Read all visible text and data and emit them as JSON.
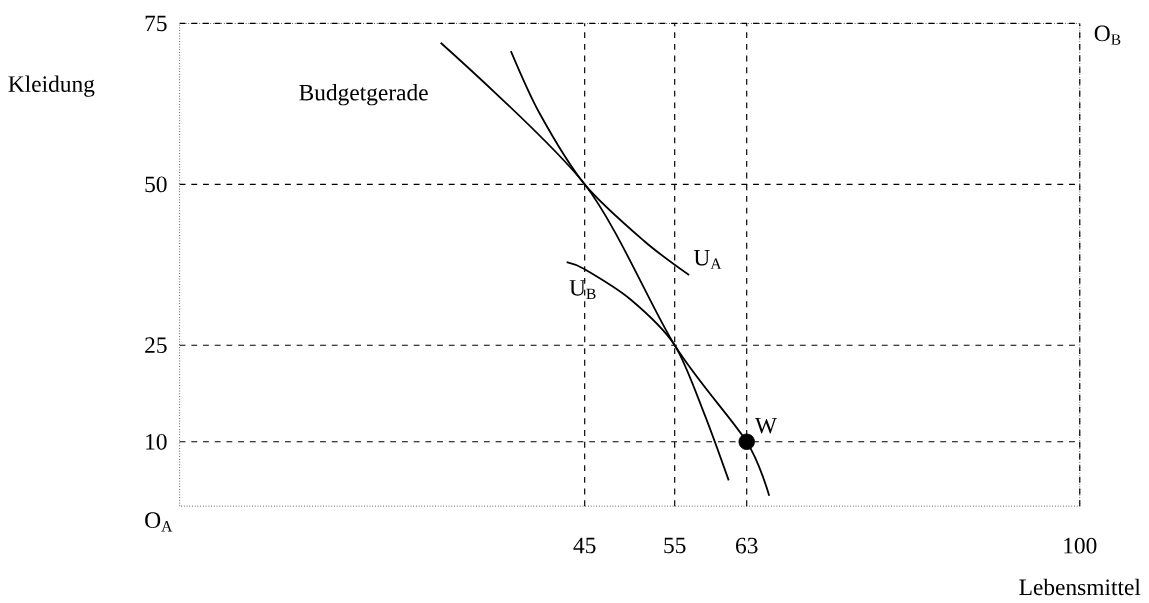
{
  "chart_data": {
    "type": "line",
    "xlabel": "Lebensmittel",
    "ylabel": "Kleidung",
    "xlim": [
      0,
      100
    ],
    "ylim": [
      0,
      75
    ],
    "xticks": [
      45,
      55,
      63,
      100
    ],
    "yticks": [
      10,
      25,
      50,
      75
    ],
    "grid": true,
    "series": [
      {
        "color": "#000000",
        "x": [
          29,
          45,
          55,
          63,
          65.5
        ],
        "values": [
          72,
          50,
          25,
          10,
          1.6
        ]
      },
      {
        "color": "#000000",
        "x": [
          36.8,
          40,
          45,
          51.6,
          56.6
        ],
        "values": [
          70.7,
          61,
          50,
          41.2,
          35.9
        ]
      },
      {
        "color": "#000000",
        "x": [
          43,
          45,
          50.1,
          55,
          58.3,
          61
        ],
        "values": [
          37.9,
          36.8,
          32.1,
          25,
          14.3,
          4
        ]
      },
      {
        "type": "scatter",
        "color": "#000000",
        "x": [
          63
        ],
        "values": [
          10
        ]
      }
    ],
    "annotations": [
      {
        "text": "Budgetgerade",
        "x": 29,
        "y": 72
      },
      {
        "text": "U$_{A}$",
        "x": 56.6,
        "y": 35.9
      },
      {
        "text": "U$_{B}$",
        "x": 43,
        "y": 37.9
      },
      {
        "text": "W",
        "x": 63,
        "y": 10
      },
      "O$_{A}$",
      "O$_{B}$"
    ]
  }
}
